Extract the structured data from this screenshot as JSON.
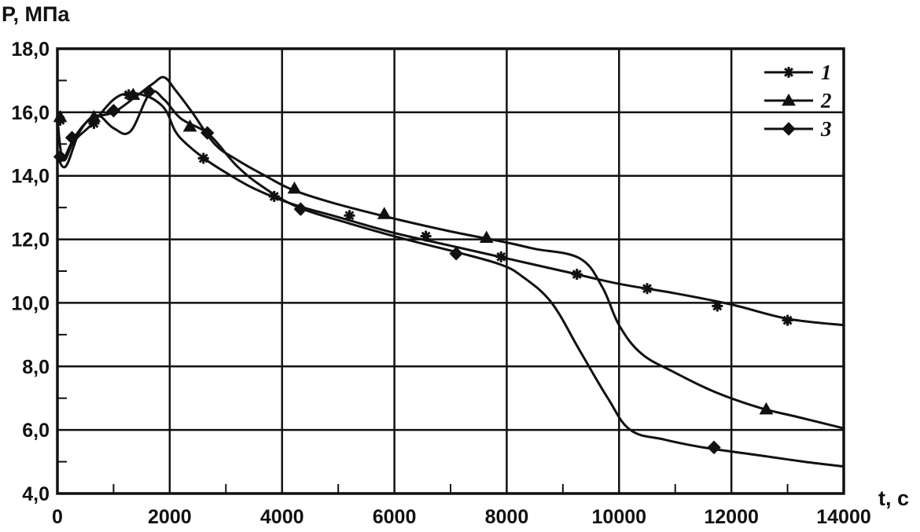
{
  "chart_data": {
    "type": "line",
    "ylabel": "P, МПа",
    "xlabel": "t, c",
    "xlim": [
      0,
      14000
    ],
    "ylim": [
      4.0,
      18.0
    ],
    "grid": true,
    "legend_position": "top-right",
    "x_ticks": [
      {
        "value": 0,
        "label": "0"
      },
      {
        "value": 2000,
        "label": "2000"
      },
      {
        "value": 4000,
        "label": "4000"
      },
      {
        "value": 6000,
        "label": "6000"
      },
      {
        "value": 8000,
        "label": "8000"
      },
      {
        "value": 10000,
        "label": "10000"
      },
      {
        "value": 12000,
        "label": "12000"
      },
      {
        "value": 14000,
        "label": "14000"
      }
    ],
    "y_ticks": [
      {
        "value": 4,
        "label": "4,0"
      },
      {
        "value": 6,
        "label": "6,0"
      },
      {
        "value": 8,
        "label": "8,0"
      },
      {
        "value": 10,
        "label": "10,0"
      },
      {
        "value": 12,
        "label": "12,0"
      },
      {
        "value": 14,
        "label": "14,0"
      },
      {
        "value": 16,
        "label": "16,0"
      },
      {
        "value": 18,
        "label": "18,0"
      }
    ],
    "series": [
      {
        "name": "1",
        "marker": "asterisk",
        "x": [
          0,
          100,
          300,
          600,
          1000,
          1300,
          1600,
          1800,
          1950,
          2100,
          2300,
          2650,
          3000,
          3500,
          4200,
          5000,
          6000,
          7000,
          8000,
          9000,
          10000,
          11000,
          12000,
          13000,
          14000
        ],
        "y": [
          15.8,
          14.5,
          15.1,
          15.6,
          16.4,
          16.6,
          16.5,
          16.3,
          16.0,
          15.4,
          15.0,
          14.5,
          14.1,
          13.6,
          13.1,
          12.7,
          12.2,
          11.8,
          11.4,
          11.0,
          10.6,
          10.3,
          9.95,
          9.5,
          9.3
        ],
        "marker_x": [
          50,
          650,
          1270,
          2600,
          3860,
          5200,
          6560,
          7900,
          9250,
          10500,
          11750,
          13000
        ],
        "marker_y": [
          15.75,
          15.65,
          16.55,
          14.55,
          13.35,
          12.75,
          12.1,
          11.45,
          10.9,
          10.45,
          9.9,
          9.45
        ]
      },
      {
        "name": "2",
        "marker": "triangle",
        "x": [
          0,
          100,
          300,
          600,
          1000,
          1400,
          1700,
          1900,
          2100,
          2400,
          2800,
          3200,
          3700,
          4200,
          5000,
          6000,
          7000,
          8000,
          8500,
          9300,
          9700,
          10000,
          10400,
          11000,
          11700,
          12500,
          13200,
          14000
        ],
        "y": [
          14.7,
          14.5,
          15.2,
          15.8,
          16.0,
          16.5,
          16.9,
          17.1,
          16.7,
          16.0,
          15.0,
          14.5,
          14.0,
          13.55,
          13.1,
          12.65,
          12.25,
          11.9,
          11.7,
          11.4,
          10.5,
          9.3,
          8.4,
          7.8,
          7.2,
          6.7,
          6.4,
          6.05
        ],
        "marker_x": [
          50,
          650,
          1350,
          2360,
          4220,
          5820,
          7640,
          12620
        ],
        "marker_y": [
          15.85,
          15.85,
          16.55,
          15.55,
          13.6,
          12.8,
          12.05,
          6.65
        ]
      },
      {
        "name": "3",
        "marker": "diamond",
        "x": [
          0,
          150,
          400,
          700,
          1000,
          1300,
          1650,
          1900,
          2200,
          2700,
          3200,
          3700,
          4300,
          5200,
          6200,
          7100,
          7900,
          8300,
          8800,
          9300,
          9800,
          10200,
          10800,
          11500,
          12500,
          13300,
          14000
        ],
        "y": [
          14.6,
          14.3,
          15.4,
          15.9,
          15.5,
          15.4,
          16.6,
          16.4,
          15.8,
          15.3,
          14.3,
          13.6,
          13.0,
          12.5,
          12.0,
          11.6,
          11.2,
          10.8,
          10.0,
          8.5,
          7.0,
          6.0,
          5.7,
          5.45,
          5.2,
          5.0,
          4.85
        ],
        "marker_x": [
          50,
          260,
          1000,
          1630,
          2670,
          4330,
          7100,
          11690
        ],
        "marker_y": [
          14.6,
          15.2,
          16.05,
          16.65,
          15.35,
          12.95,
          11.55,
          5.45
        ]
      }
    ]
  }
}
